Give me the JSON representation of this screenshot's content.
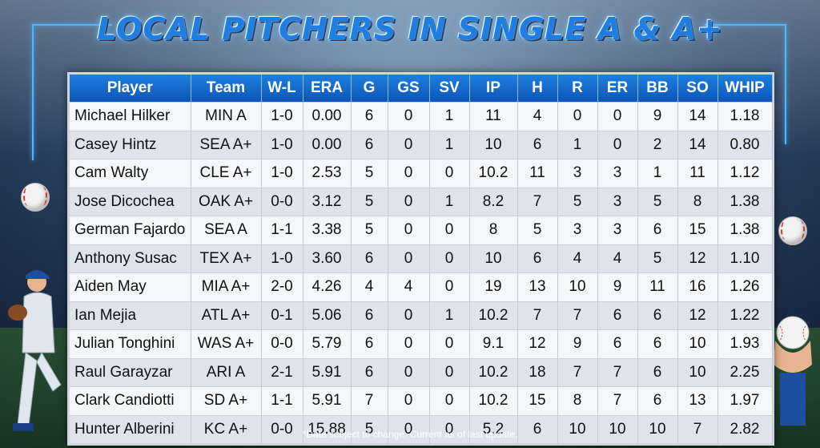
{
  "title": "LOCAL PITCHERS IN SINGLE A & A+",
  "columns": [
    "Player",
    "Team",
    "W-L",
    "ERA",
    "G",
    "GS",
    "SV",
    "IP",
    "H",
    "R",
    "ER",
    "BB",
    "SO",
    "WHIP"
  ],
  "rows": [
    [
      "Michael Hilker",
      "MIN A",
      "1-0",
      "0.00",
      "6",
      "0",
      "1",
      "11",
      "4",
      "0",
      "0",
      "9",
      "14",
      "1.18"
    ],
    [
      "Casey Hintz",
      "SEA A+",
      "1-0",
      "0.00",
      "6",
      "0",
      "1",
      "10",
      "6",
      "1",
      "0",
      "2",
      "14",
      "0.80"
    ],
    [
      "Cam Walty",
      "CLE A+",
      "1-0",
      "2.53",
      "5",
      "0",
      "0",
      "10.2",
      "11",
      "3",
      "3",
      "1",
      "11",
      "1.12"
    ],
    [
      "Jose Dicochea",
      "OAK A+",
      "0-0",
      "3.12",
      "5",
      "0",
      "1",
      "8.2",
      "7",
      "5",
      "3",
      "5",
      "8",
      "1.38"
    ],
    [
      "German Fajardo",
      "SEA A",
      "1-1",
      "3.38",
      "5",
      "0",
      "0",
      "8",
      "5",
      "3",
      "3",
      "6",
      "15",
      "1.38"
    ],
    [
      "Anthony Susac",
      "TEX A+",
      "1-0",
      "3.60",
      "6",
      "0",
      "0",
      "10",
      "6",
      "4",
      "4",
      "5",
      "12",
      "1.10"
    ],
    [
      "Aiden May",
      "MIA A+",
      "2-0",
      "4.26",
      "4",
      "4",
      "0",
      "19",
      "13",
      "10",
      "9",
      "11",
      "16",
      "1.26"
    ],
    [
      "Ian Mejia",
      "ATL A+",
      "0-1",
      "5.06",
      "6",
      "0",
      "1",
      "10.2",
      "7",
      "7",
      "6",
      "6",
      "12",
      "1.22"
    ],
    [
      "Julian Tonghini",
      "WAS A+",
      "0-0",
      "5.79",
      "6",
      "0",
      "0",
      "9.1",
      "12",
      "9",
      "6",
      "6",
      "10",
      "1.93"
    ],
    [
      "Raul Garayzar",
      "ARI A",
      "2-1",
      "5.91",
      "6",
      "0",
      "0",
      "10.2",
      "18",
      "7",
      "7",
      "6",
      "10",
      "2.25"
    ],
    [
      "Clark Candiotti",
      "SD A+",
      "1-1",
      "5.91",
      "7",
      "0",
      "0",
      "10.2",
      "15",
      "8",
      "7",
      "6",
      "13",
      "1.97"
    ],
    [
      "Hunter Alberini",
      "KC A+",
      "0-0",
      "15.88",
      "5",
      "0",
      "0",
      "5.2",
      "6",
      "10",
      "10",
      "10",
      "7",
      "2.82"
    ]
  ],
  "footnote": "*Data subject to change. Current as of last update.",
  "icons": [
    "baseball-icon",
    "pitcher-illustration",
    "hand-holding-baseball-illustration"
  ],
  "colors": {
    "header": "#1e7fe0",
    "title": "#1d7fe6",
    "accent": "#4fb7ff"
  }
}
